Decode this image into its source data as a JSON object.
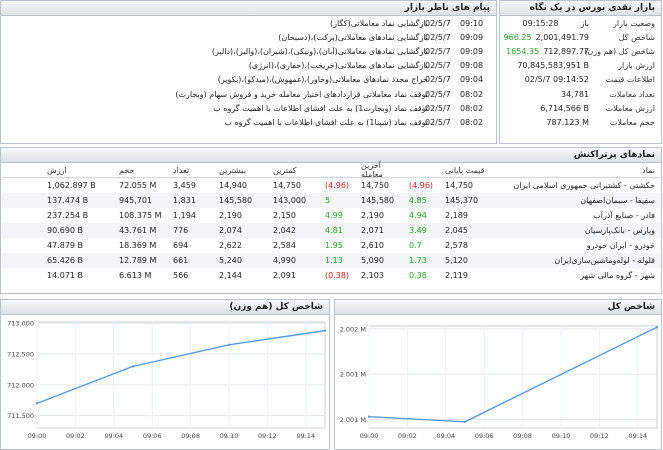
{
  "summary": {
    "title": "بازار نقدی بورس در یک نگاه",
    "rows": [
      {
        "label": "وضعیت بازار",
        "value": "باز",
        "change": ""
      },
      {
        "label": "شاخص کل",
        "value": "2,001,491.79",
        "change": "966.25"
      },
      {
        "label": "شاخص کل (هم وزن)",
        "value": "712,897.77",
        "change": "1654.35"
      },
      {
        "label": "ارزش بازار",
        "value": "70,845,583,951 B",
        "change": ""
      },
      {
        "label": "اطلاعات قیمت",
        "value": "02/5/7 09:14:52",
        "change": ""
      },
      {
        "label": "تعداد معاملات",
        "value": "34,781",
        "change": ""
      },
      {
        "label": "ارزش معاملات",
        "value": "6,714,566 B",
        "change": ""
      },
      {
        "label": "حجم معاملات",
        "value": "787.123 M",
        "change": ""
      }
    ],
    "status_time": "09:15:28"
  },
  "messages": {
    "title": "پیام های ناظر بازار",
    "rows": [
      {
        "text": "بازگشایی نماد معاملاتی(کگاز)",
        "time": "09:10",
        "date": "02/5/7"
      },
      {
        "text": "بازگشایی نمادهای معاملاتی(برکت)،(دسبحان)",
        "time": "09:09",
        "date": "02/5/7"
      },
      {
        "text": "بازگشایی نمادهای معاملاتی(آبان)،(ونیکی)،(شیران)،(والبر)،(دالبر)",
        "time": "09:09",
        "date": "02/5/7"
      },
      {
        "text": "بازگشایی نمادهای معاملاتی(خریخت)،(حفاری)،(انرژی)",
        "time": "09:08",
        "date": "02/5/7"
      },
      {
        "text": "حراج مجدد نمادهای معاملاتی(وخاور)،(غمهوش)،(میدکو)،(بکویر)",
        "time": "09:04",
        "date": "02/5/7"
      },
      {
        "text": "توقف نماد معاملاتی قراردادهای اختیار معامله خرید و فروش سهام (وبجارت)",
        "time": "08:02",
        "date": "02/5/7"
      },
      {
        "text": "توقف نماد (وبجارت1) به علت افشای اطلاعات با اهمیت گروه ب",
        "time": "08:02",
        "date": "02/5/7"
      },
      {
        "text": "توقف نماد (شپنا1) به علت افشای اطلاعات با اهمیت گروه ب",
        "time": "08:02",
        "date": "02/5/7"
      }
    ]
  },
  "top_symbols": {
    "title": "نمادهای پرتراکنش",
    "headers": {
      "name": "نماد",
      "close": "قیمت پایانی",
      "last": "آخرین معامله",
      "min": "کمترین",
      "max": "بیشترین",
      "count": "تعداد",
      "volume": "حجم",
      "value": "ارزش"
    },
    "rows": [
      {
        "name": "حکشتی - کشتیرانی جمهوری اسلامی ایران",
        "close": "14,750",
        "close_chg": "(4.96)",
        "last": "14,750",
        "last_chg": "(4.96)",
        "min": "14,750",
        "max": "14,940",
        "count": "3,459",
        "volume": "72.055 M",
        "value": "1,062.897 B"
      },
      {
        "name": "سفیفا - سیمان‌اصفهان",
        "close": "145,370",
        "close_chg": "4.85",
        "last": "145,580",
        "last_chg": "5",
        "min": "143,000",
        "max": "145,580",
        "count": "1,831",
        "volume": "945,701",
        "value": "137.474 B"
      },
      {
        "name": "فادر - صنایع آذرآب",
        "close": "2,189",
        "close_chg": "4.94",
        "last": "2,190",
        "last_chg": "4.99",
        "min": "2,150",
        "max": "2,190",
        "count": "1,194",
        "volume": "108.375 M",
        "value": "237.254 B"
      },
      {
        "name": "وپارس - بانک‌پارسیان",
        "close": "2,045",
        "close_chg": "3.49",
        "last": "2,071",
        "last_chg": "4.81",
        "min": "2,042",
        "max": "2,074",
        "count": "776",
        "volume": "43.761 M",
        "value": "90.690 B"
      },
      {
        "name": "خودرو - ایران‌ خودرو",
        "close": "2,578",
        "close_chg": "0.7",
        "last": "2,610",
        "last_chg": "1.95",
        "min": "2,584",
        "max": "2,622",
        "count": "694",
        "volume": "18.369 M",
        "value": "47.879 B"
      },
      {
        "name": "فلوله - لوله‌وماشین‌سازی‌ایران",
        "close": "5,120",
        "close_chg": "1.73",
        "last": "5,090",
        "last_chg": "1.13",
        "min": "4,990",
        "max": "5,240",
        "count": "661",
        "volume": "12.789 M",
        "value": "65.426 B"
      },
      {
        "name": "شهر - گروه مالی شهر",
        "close": "2,119",
        "close_chg": "0.38",
        "last": "2,103",
        "last_chg": "(0.38)",
        "min": "2,091",
        "max": "2,144",
        "count": "566",
        "volume": "6.613 M",
        "value": "14.071 B"
      }
    ]
  },
  "chart_data": [
    {
      "type": "line",
      "title": "شاخص کل",
      "x": [
        "09:00",
        "09:02",
        "09:04",
        "09:06",
        "09:08",
        "09:10",
        "09:12",
        "09:14"
      ],
      "series": [
        {
          "x": [
            "09:00",
            "09:05",
            "09:15"
          ],
          "values": [
            2000650,
            2000560,
            2002230
          ]
        }
      ],
      "yticks": [
        "2.001 M",
        "2.001 M",
        "2.002 M"
      ],
      "ytick_values": [
        2000600,
        2001400,
        2002200
      ],
      "ylim": [
        2000450,
        2002250
      ],
      "line_color": "#5b9bd5"
    },
    {
      "type": "line",
      "title": "شاخص کل (هم وزن)",
      "x": [
        "09:00",
        "09:02",
        "09:04",
        "09:06",
        "09:08",
        "09:10",
        "09:12",
        "09:14"
      ],
      "series": [
        {
          "x": [
            "09:00",
            "09:05",
            "09:10",
            "09:15"
          ],
          "values": [
            711700,
            712300,
            712650,
            712880
          ]
        }
      ],
      "yticks": [
        "711.500",
        "712.000",
        "712.500",
        "713.000"
      ],
      "ytick_values": [
        711500,
        712000,
        712500,
        713000
      ],
      "ylim": [
        711300,
        713020
      ],
      "line_color": "#5b9bd5"
    }
  ]
}
